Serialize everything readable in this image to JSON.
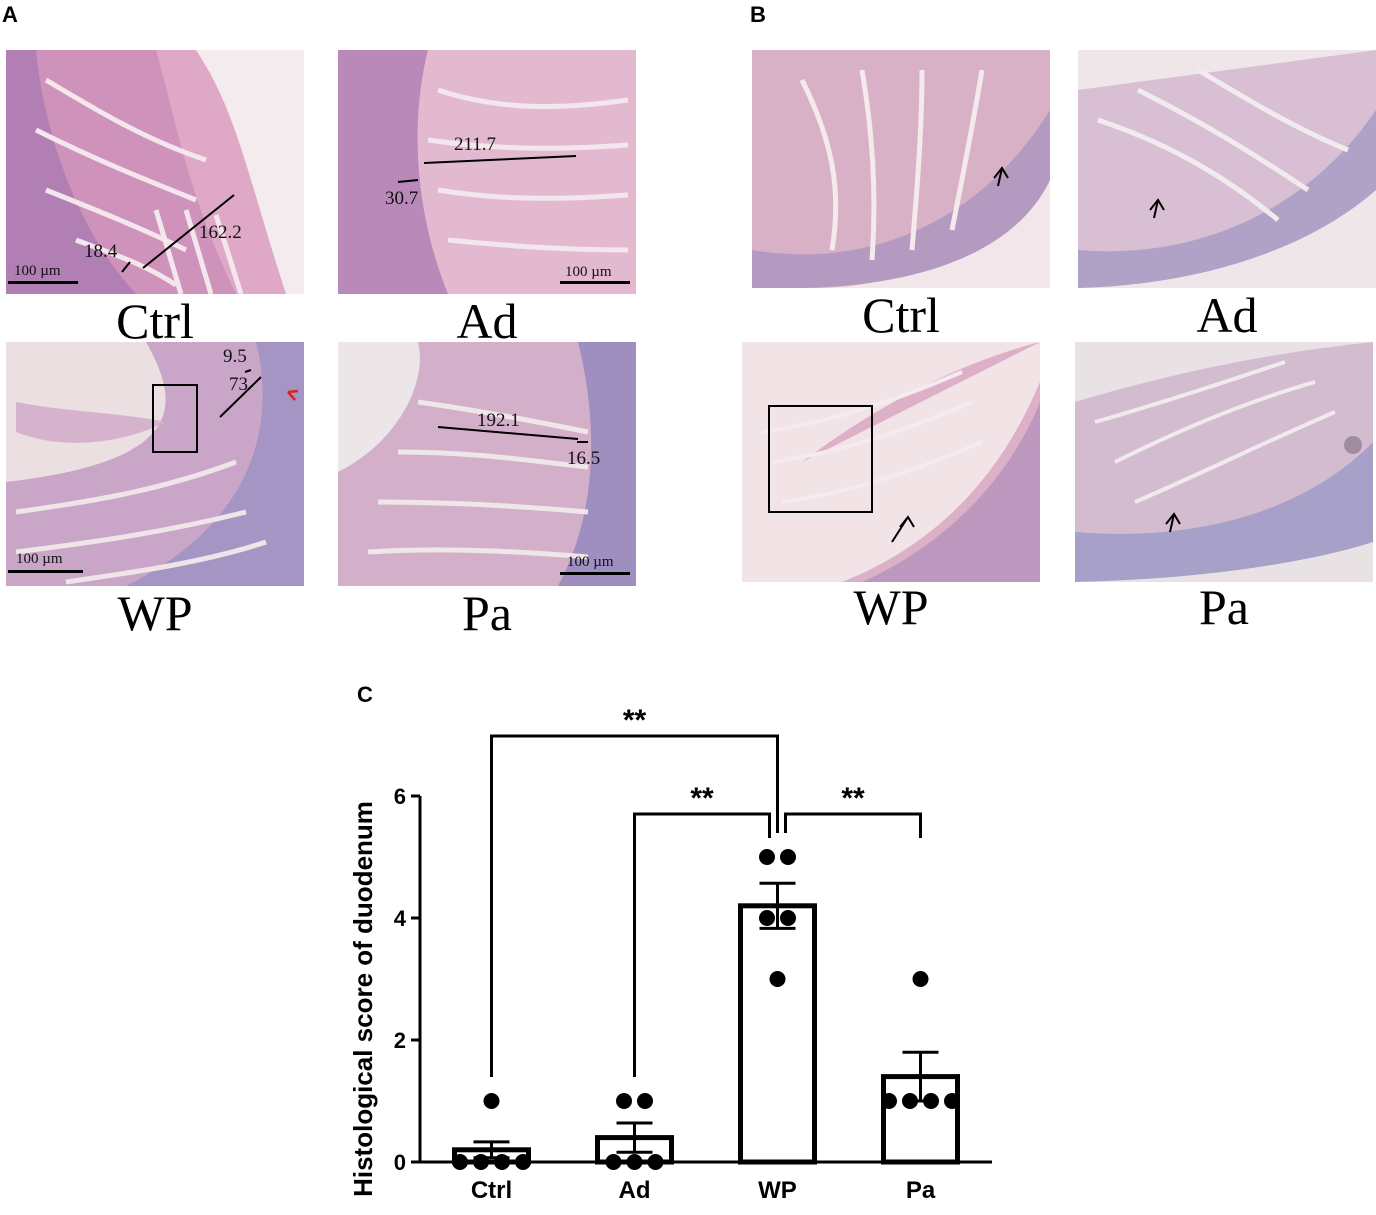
{
  "panels": {
    "a": {
      "letter": "A",
      "images": [
        {
          "caption": "Ctrl",
          "measurements": [
            "18.4",
            "162.2"
          ],
          "scale": "100 µm"
        },
        {
          "caption": "Ad",
          "measurements": [
            "211.7",
            "30.7"
          ],
          "scale": "100 µm"
        },
        {
          "caption": "WP",
          "measurements": [
            "9.5",
            "73"
          ],
          "scale": "100 µm"
        },
        {
          "caption": "Pa",
          "measurements": [
            "192.1",
            "16.5"
          ],
          "scale": "100 µm"
        }
      ]
    },
    "b": {
      "letter": "B",
      "images": [
        {
          "caption": "Ctrl"
        },
        {
          "caption": "Ad"
        },
        {
          "caption": "WP"
        },
        {
          "caption": "Pa"
        }
      ]
    },
    "c": {
      "letter": "C"
    }
  },
  "colors": {
    "tissue_pink": "#e3aec9",
    "tissue_purple": "#a893c4",
    "background_light": "#efe3e6",
    "red_arrow": "#e0201b"
  },
  "chart_data": {
    "type": "bar",
    "categories": [
      "Ctrl",
      "Ad",
      "WP",
      "Pa"
    ],
    "values": [
      0.2,
      0.4,
      4.2,
      1.4
    ],
    "sem": [
      0.13,
      0.24,
      0.37,
      0.4
    ],
    "points": [
      [
        1,
        0,
        0,
        0,
        0
      ],
      [
        1,
        1,
        0,
        0,
        0
      ],
      [
        5,
        5,
        4,
        4,
        3
      ],
      [
        3,
        1,
        1,
        1,
        1
      ]
    ],
    "ylabel": "Histological score of duodenum",
    "xlabel": "",
    "ylim": [
      0,
      6
    ],
    "yticks": [
      0,
      2,
      4,
      6
    ],
    "significance": [
      {
        "pair": [
          "Ctrl",
          "WP"
        ],
        "label": "**"
      },
      {
        "pair": [
          "Ad",
          "WP"
        ],
        "label": "**"
      },
      {
        "pair": [
          "WP",
          "Pa"
        ],
        "label": "**"
      }
    ]
  }
}
